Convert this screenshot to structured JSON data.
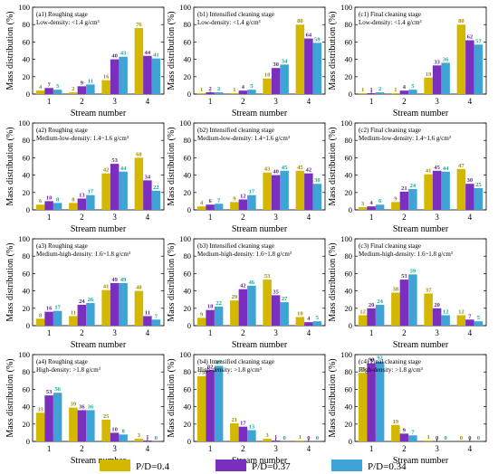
{
  "chart_data": {
    "type": "bar",
    "categories": [
      "1",
      "2",
      "3",
      "4"
    ],
    "xlabel": "Stream number",
    "ylabel": "Mass distribution (%)",
    "ylim": [
      0,
      100
    ],
    "yticks": [
      "0",
      "20",
      "40",
      "60",
      "80",
      "100"
    ],
    "grid": false,
    "legend_position": "bottom",
    "series_legend": [
      {
        "name": "P/D=0.4",
        "color": "#d4b800"
      },
      {
        "name": "P/D=0.37",
        "color": "#7b2fbe"
      },
      {
        "name": "P/D=0.34",
        "color": "#3fa3d6"
      }
    ],
    "label_colors": [
      "#a08800",
      "#5a1e96",
      "#16a895"
    ],
    "panels": [
      {
        "id": "a1",
        "title": "(a1) Roughing stage",
        "subtitle": "Low-density: <1.4 g/cm³",
        "series": [
          [
            4,
            2,
            16,
            76
          ],
          [
            7,
            9,
            40,
            44
          ],
          [
            5,
            11,
            43,
            41
          ]
        ]
      },
      {
        "id": "b1",
        "title": "(b1) Intensified cleaning stage",
        "subtitle": "Low-density: <1.4 g/cm³",
        "series": [
          [
            1,
            1,
            18,
            80
          ],
          [
            2,
            4,
            30,
            64
          ],
          [
            2,
            5,
            34,
            59
          ]
        ]
      },
      {
        "id": "c1",
        "title": "(c1) Final cleaning stage",
        "subtitle": "Low-density: <1.4 g/cm³",
        "series": [
          [
            1,
            1,
            19,
            80
          ],
          [
            1,
            4,
            33,
            62
          ],
          [
            2,
            5,
            36,
            57
          ]
        ]
      },
      {
        "id": "a2",
        "title": "(a2) Roughing stage",
        "subtitle": "Medium-low-density: 1.4~1.6 g/cm³",
        "series": [
          [
            6,
            8,
            42,
            60
          ],
          [
            10,
            13,
            53,
            34
          ],
          [
            8,
            17,
            44,
            22
          ]
        ]
      },
      {
        "id": "b2",
        "title": "(b2) Intensified cleaning stage",
        "subtitle": "Medium-low-density: 1.4~1.6 g/cm³",
        "series": [
          [
            4,
            9,
            43,
            45
          ],
          [
            6,
            12,
            40,
            42
          ],
          [
            7,
            17,
            45,
            30
          ]
        ]
      },
      {
        "id": "c2",
        "title": "(c2) Final cleaning stage",
        "subtitle": "Medium-low-density: 1.4~1.6 g/cm³",
        "series": [
          [
            3,
            9,
            41,
            47
          ],
          [
            4,
            21,
            45,
            30
          ],
          [
            6,
            24,
            44,
            25
          ]
        ]
      },
      {
        "id": "a3",
        "title": "(a3) Roughing stage",
        "subtitle": "Medium-high-density: 1.6~1.8 g/cm³",
        "series": [
          [
            8,
            11,
            41,
            40
          ],
          [
            16,
            24,
            49,
            11
          ],
          [
            17,
            26,
            49,
            7
          ]
        ]
      },
      {
        "id": "b3",
        "title": "(b3) Intensified cleaning stage",
        "subtitle": "Medium-high-density: 1.6~1.8 g/cm³",
        "series": [
          [
            9,
            29,
            53,
            10
          ],
          [
            18,
            42,
            35,
            4
          ],
          [
            22,
            46,
            27,
            5
          ]
        ]
      },
      {
        "id": "c3",
        "title": "(c3) Final cleaning stage",
        "subtitle": "Medium-high-density: 1.6~1.8 g/cm³",
        "series": [
          [
            12,
            38,
            37,
            12
          ],
          [
            20,
            53,
            20,
            7
          ],
          [
            24,
            59,
            12,
            5
          ]
        ]
      },
      {
        "id": "a4",
        "title": "(a4) Roughing stage",
        "subtitle": "High-density: >1.8 g/cm³",
        "series": [
          [
            33,
            39,
            25,
            3
          ],
          [
            53,
            36,
            10,
            1
          ],
          [
            56,
            36,
            8,
            0
          ]
        ]
      },
      {
        "id": "b4",
        "title": "(b4) Intensified cleaning stage",
        "subtitle": "High-density: >1.8 g/cm³",
        "series": [
          [
            75,
            21,
            3,
            1
          ],
          [
            82,
            17,
            1,
            0
          ],
          [
            87,
            13,
            0,
            0
          ]
        ]
      },
      {
        "id": "c4",
        "title": "(c4) Final cleaning stage",
        "subtitle": "High-density: >1.8 g/cm³",
        "series": [
          [
            79,
            19,
            1,
            0
          ],
          [
            90,
            9,
            0,
            0
          ],
          [
            92,
            7,
            0,
            0
          ]
        ]
      }
    ]
  }
}
